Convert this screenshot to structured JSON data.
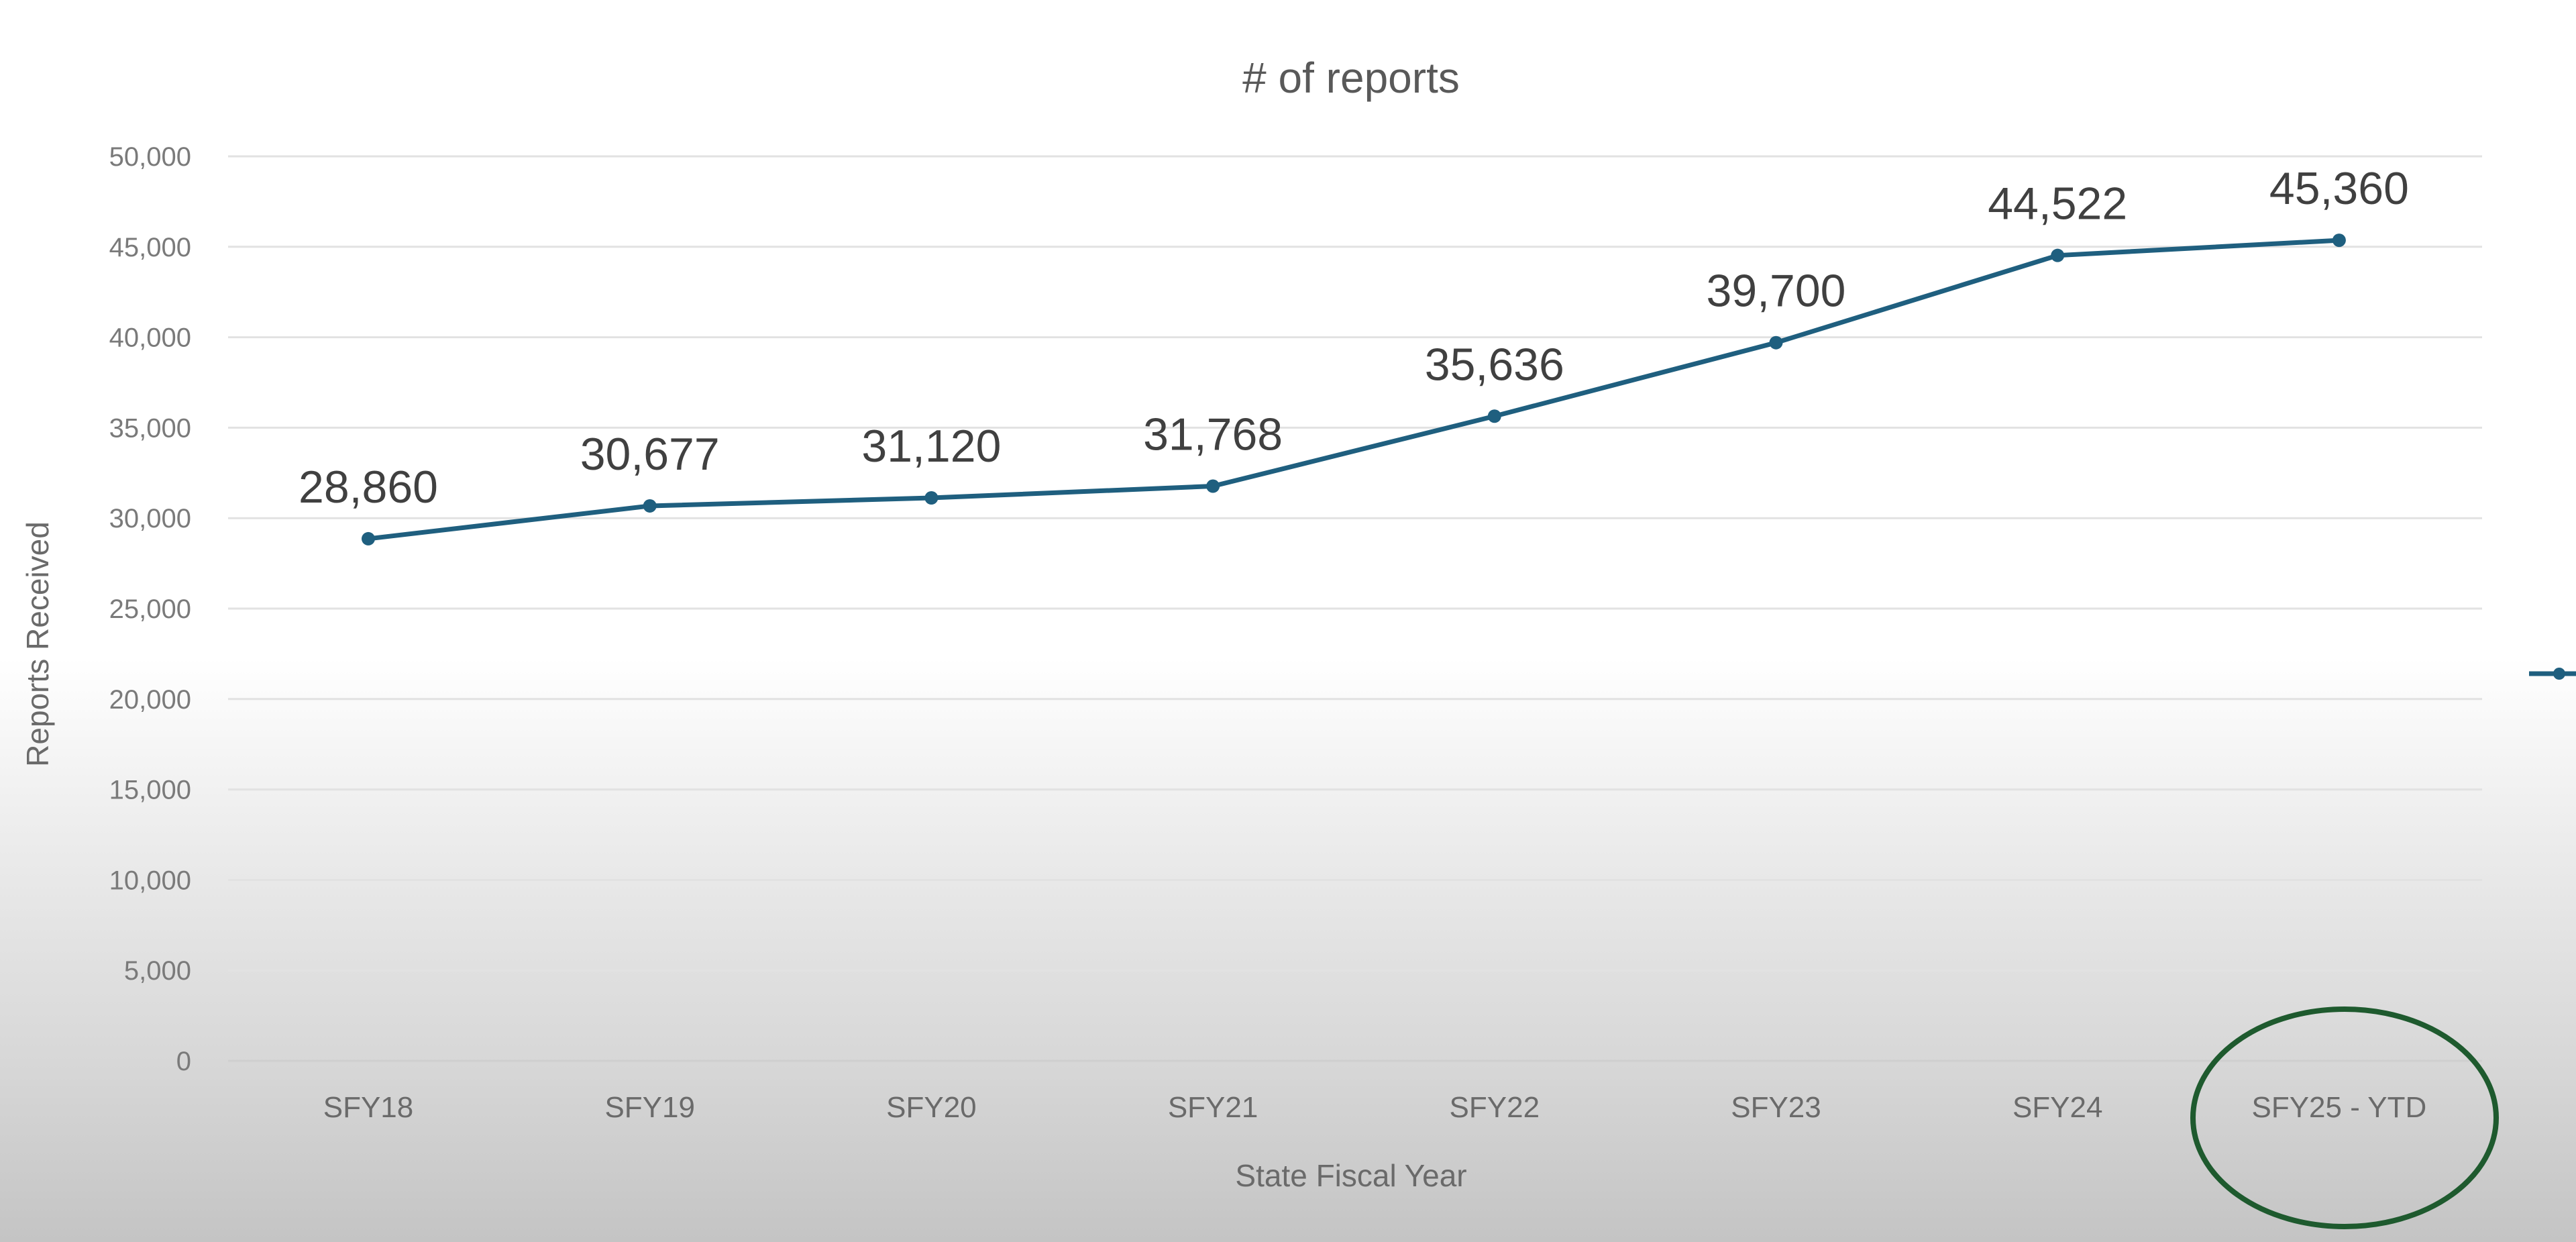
{
  "chart_data": {
    "type": "line",
    "title": "# of reports",
    "xlabel": "State Fiscal Year",
    "ylabel": "Reports Received",
    "categories": [
      "SFY18",
      "SFY19",
      "SFY20",
      "SFY21",
      "SFY22",
      "SFY23",
      "SFY24",
      "SFY25 - YTD"
    ],
    "values": [
      28860,
      30677,
      31120,
      31768,
      35636,
      39700,
      44522,
      45360
    ],
    "data_labels": [
      "28,860",
      "30,677",
      "31,120",
      "31,768",
      "35,636",
      "39,700",
      "44,522",
      "45,360"
    ],
    "ylim": [
      0,
      50000
    ],
    "yticks": [
      "0",
      "5,000",
      "10,000",
      "15,000",
      "20,000",
      "25,000",
      "30,000",
      "35,000",
      "40,000",
      "45,000",
      "50,000"
    ],
    "grid": true,
    "legend": "right (cut off)",
    "line_color": "#1f5f7f",
    "annotation": {
      "shape": "ellipse",
      "target": "SFY25 - YTD",
      "color": "#1e5a2e"
    }
  }
}
